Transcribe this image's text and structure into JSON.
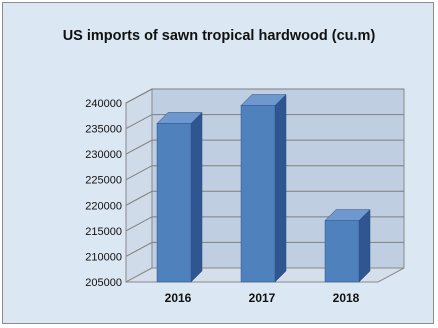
{
  "chart_data": {
    "type": "bar",
    "title": "US imports of sawn tropical hardwood (cu.m)",
    "categories": [
      "2016",
      "2017",
      "2018"
    ],
    "series": [
      {
        "values": [
          236000,
          239500,
          217000
        ]
      }
    ],
    "ylim": [
      205000,
      240000
    ],
    "yticks": [
      205000,
      210000,
      215000,
      220000,
      225000,
      230000,
      235000,
      240000
    ],
    "ytick_labels": [
      "205000",
      "210000",
      "215000",
      "220000",
      "225000",
      "230000",
      "235000",
      "240000"
    ],
    "grid": true,
    "legend": "none",
    "colors": {
      "bar": "#4f81bd",
      "bar_side": "#2f5690",
      "bar_top": "#6f98cf",
      "background": "#dbe7f2",
      "wall": "#bfcfe1"
    }
  }
}
